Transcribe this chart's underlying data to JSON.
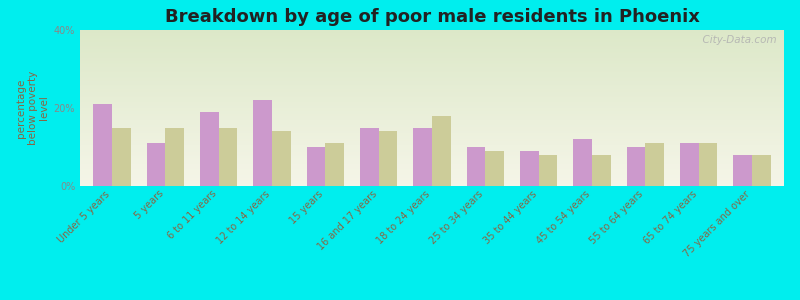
{
  "title": "Breakdown by age of poor male residents in Phoenix",
  "ylabel": "percentage\nbelow poverty\nlevel",
  "categories": [
    "Under 5 years",
    "5 years",
    "6 to 11 years",
    "12 to 14 years",
    "15 years",
    "16 and 17 years",
    "18 to 24 years",
    "25 to 34 years",
    "35 to 44 years",
    "45 to 54 years",
    "55 to 64 years",
    "65 to 74 years",
    "75 years and over"
  ],
  "phoenix_values": [
    21,
    11,
    19,
    22,
    10,
    15,
    15,
    10,
    9,
    12,
    10,
    11,
    8
  ],
  "arizona_values": [
    15,
    15,
    15,
    14,
    11,
    14,
    18,
    9,
    8,
    8,
    11,
    11,
    8
  ],
  "phoenix_color": "#cc99cc",
  "arizona_color": "#cccc99",
  "ylim": [
    0,
    40
  ],
  "yticks": [
    0,
    20,
    40
  ],
  "ytick_labels": [
    "0%",
    "20%",
    "40%"
  ],
  "bg_color_top": "#dce8c8",
  "bg_color_bottom": "#f5f5e8",
  "outer_bg": "#00eeee",
  "watermark": "  City-Data.com",
  "bar_width": 0.35,
  "title_fontsize": 13,
  "axis_label_fontsize": 7.5,
  "tick_fontsize": 7,
  "legend_fontsize": 9,
  "label_color": "#886644",
  "ytick_color": "#888888"
}
